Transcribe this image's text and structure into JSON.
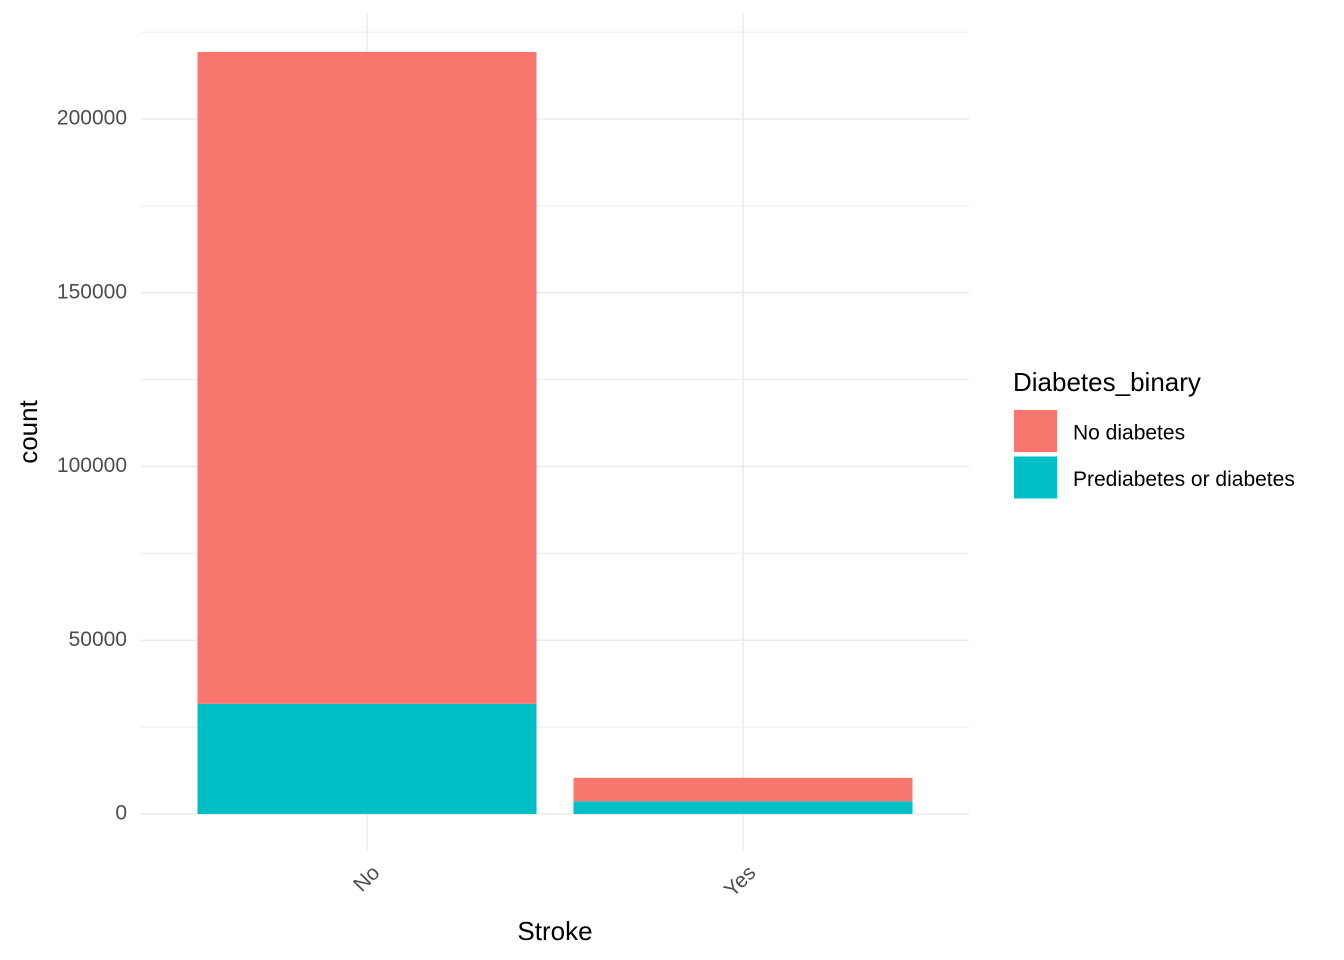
{
  "chart_data": {
    "type": "bar",
    "stacked": true,
    "categories": [
      "No",
      "Yes"
    ],
    "series": [
      {
        "name": "No diabetes",
        "color": "#F8766D",
        "values": [
          187577,
          6757
        ]
      },
      {
        "name": "Prediabetes or diabetes",
        "color": "#00BFC4",
        "values": [
          31701,
          3646
        ]
      }
    ],
    "xlabel": "Stroke",
    "ylabel": "count",
    "ylim": [
      0,
      230000
    ],
    "yticks": [
      0,
      50000,
      100000,
      150000,
      200000
    ],
    "ytick_labels": [
      "0",
      "50000",
      "100000",
      "150000",
      "200000"
    ],
    "grid": true,
    "legend": {
      "title": "Diabetes_binary",
      "position": "right"
    }
  }
}
